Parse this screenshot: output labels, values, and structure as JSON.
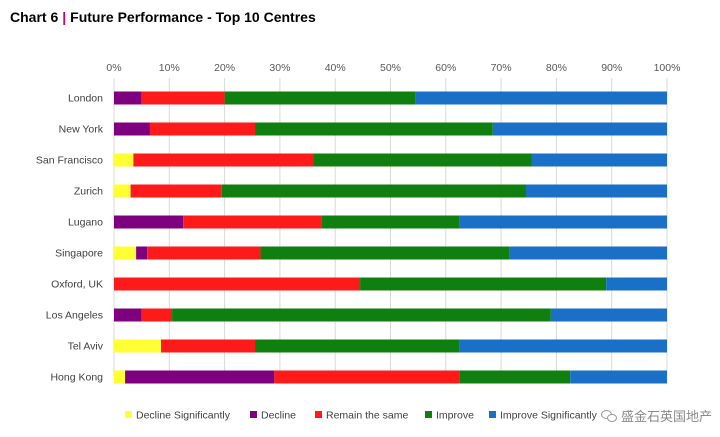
{
  "title": {
    "chart_label": "Chart 6",
    "separator": "|",
    "text": "Future Performance - Top 10 Centres"
  },
  "watermark": "盛金石英国地产",
  "chart_data": {
    "type": "bar",
    "orientation": "horizontal",
    "stacked": "percent",
    "title": "Future Performance - Top 10 Centres",
    "categories": [
      "London",
      "New York",
      "San Francisco",
      "Zurich",
      "Lugano",
      "Singapore",
      "Oxford, UK",
      "Los Angeles",
      "Tel Aviv",
      "Hong Kong"
    ],
    "series": [
      {
        "name": "Decline Significantly",
        "color": "#ffff33",
        "values": [
          0,
          0,
          3.5,
          3,
          0,
          4,
          0,
          0,
          8.5,
          2
        ]
      },
      {
        "name": "Decline",
        "color": "#7f007f",
        "values": [
          5,
          6.5,
          0,
          0,
          12.5,
          2,
          0,
          5,
          0,
          27
        ]
      },
      {
        "name": "Remain the same",
        "color": "#ff1a1a",
        "values": [
          15,
          19,
          32.5,
          16.5,
          25,
          20.5,
          44.5,
          5.5,
          17,
          33.5
        ]
      },
      {
        "name": "Improve",
        "color": "#0f7f0f",
        "values": [
          34.5,
          43,
          39.5,
          55,
          25,
          45,
          44.5,
          68.5,
          37,
          20
        ]
      },
      {
        "name": "Improve Significantly",
        "color": "#1a6fc6",
        "values": [
          45.5,
          31.5,
          24.5,
          25.5,
          37.5,
          28.5,
          11,
          21,
          37.5,
          17.5
        ]
      }
    ],
    "xlim": [
      0,
      100
    ],
    "xticks": [
      "0%",
      "10%",
      "20%",
      "30%",
      "40%",
      "50%",
      "60%",
      "70%",
      "80%",
      "90%",
      "100%"
    ],
    "grid": true,
    "legend_position": "bottom"
  }
}
